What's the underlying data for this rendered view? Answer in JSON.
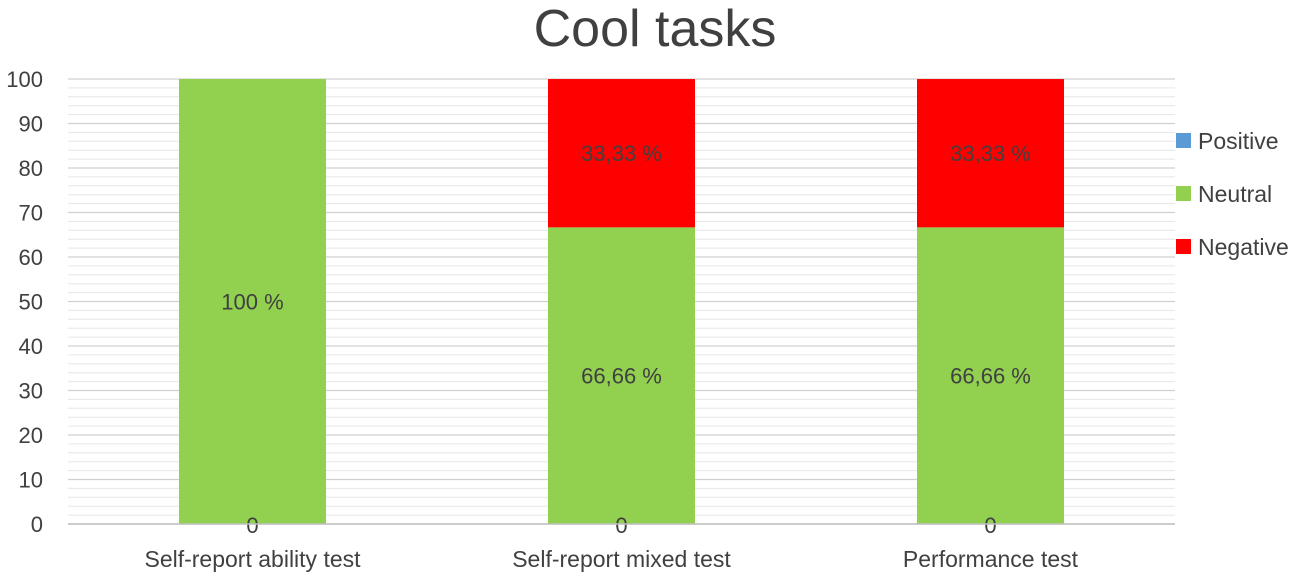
{
  "chart_data": {
    "type": "bar",
    "stacked": true,
    "title": "Cool tasks",
    "xlabel": "",
    "ylabel": "",
    "ylim": [
      0,
      100
    ],
    "yticks": [
      0,
      10,
      20,
      30,
      40,
      50,
      60,
      70,
      80,
      90,
      100
    ],
    "grid": true,
    "legend_position": "right",
    "categories": [
      "Self-report ability test",
      "Self-report mixed test",
      "Performance test"
    ],
    "series": [
      {
        "name": "Positive",
        "color": "#5B9BD5",
        "values": [
          0,
          0,
          0
        ],
        "labels": [
          "0",
          "0",
          "0"
        ]
      },
      {
        "name": "Neutral",
        "color": "#92D050",
        "values": [
          100,
          66.66,
          66.66
        ],
        "labels": [
          "100 %",
          "66,66 %",
          "66,66 %"
        ]
      },
      {
        "name": "Negative",
        "color": "#FF0000",
        "values": [
          0,
          33.33,
          33.33
        ],
        "labels": [
          "",
          "33,33 %",
          "33,33 %"
        ]
      }
    ]
  }
}
